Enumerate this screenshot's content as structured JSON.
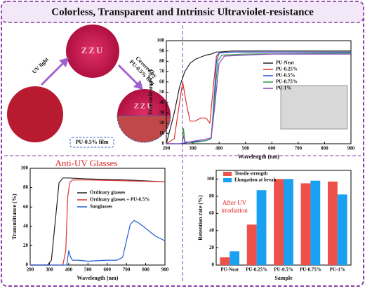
{
  "figure": {
    "title": "Colorless, Transparent and Intrinsic Ultraviolet-resistance",
    "photo_text": "ZZU",
    "arrow_left": "UV light",
    "arrow_right": [
      "Covered by",
      "PU-0.5% film"
    ],
    "film_label": "PU-0.5% film"
  },
  "chart_data": [
    {
      "type": "line",
      "xlabel": "Wavelength (nm)",
      "ylabel": "Transmittance (%)",
      "xlim": [
        200,
        900
      ],
      "xticks": [
        200,
        300,
        400,
        500,
        600,
        700,
        800,
        900
      ],
      "ylim": [
        0,
        100
      ],
      "yticks": [
        0,
        10,
        20,
        30,
        40,
        50,
        60,
        70,
        80,
        90,
        100
      ],
      "series": [
        {
          "name": "PU-Neat",
          "color": "#222222",
          "x": [
            200,
            230,
            250,
            270,
            290,
            310,
            330,
            350,
            370,
            380,
            390,
            400,
            450,
            500,
            600,
            700,
            800,
            900
          ],
          "values": [
            0,
            30,
            55,
            70,
            78,
            82,
            84,
            86,
            87,
            88,
            89,
            89,
            90,
            90,
            90,
            90,
            90,
            90
          ]
        },
        {
          "name": "PU-0.25%",
          "color": "#e03030",
          "x": [
            200,
            230,
            250,
            262,
            275,
            290,
            310,
            330,
            350,
            365,
            380,
            390,
            400,
            450,
            600,
            900
          ],
          "values": [
            0,
            5,
            40,
            60,
            40,
            22,
            22,
            25,
            25,
            20,
            60,
            85,
            88,
            89,
            89,
            89
          ]
        },
        {
          "name": "PU-0.5%",
          "color": "#2050e0",
          "x": [
            200,
            250,
            300,
            350,
            370,
            380,
            390,
            400,
            450,
            600,
            900
          ],
          "values": [
            0,
            0,
            2,
            3,
            5,
            40,
            80,
            88,
            89,
            89,
            89
          ]
        },
        {
          "name": "PU-0.75%",
          "color": "#2a9a40",
          "x": [
            200,
            260,
            265,
            270,
            300,
            350,
            370,
            385,
            395,
            410,
            500,
            900
          ],
          "values": [
            0,
            0,
            15,
            2,
            1,
            3,
            5,
            50,
            80,
            86,
            87,
            88
          ]
        },
        {
          "name": "PU-1%",
          "color": "#9040c0",
          "x": [
            200,
            260,
            265,
            270,
            360,
            370,
            385,
            400,
            420,
            600,
            900
          ],
          "values": [
            0,
            0,
            8,
            1,
            5,
            6,
            40,
            78,
            85,
            87,
            87
          ]
        }
      ]
    },
    {
      "type": "line",
      "title": "Anti-UV Glasses",
      "xlabel": "Wavelength (nm)",
      "ylabel": "Transmittance (%)",
      "xlim": [
        200,
        900
      ],
      "xticks": [
        200,
        300,
        400,
        500,
        600,
        700,
        800,
        900
      ],
      "ylim": [
        0,
        100
      ],
      "yticks": [
        0,
        20,
        40,
        60,
        80,
        100
      ],
      "series": [
        {
          "name": "Ordinary glasses",
          "color": "#222222",
          "x": [
            200,
            290,
            310,
            330,
            350,
            370,
            400,
            500,
            700,
            900
          ],
          "values": [
            0,
            0,
            5,
            45,
            85,
            90,
            90,
            89,
            88,
            86
          ]
        },
        {
          "name": "Ordinary glasses + PU-0.5%",
          "color": "#e03030",
          "x": [
            200,
            370,
            385,
            395,
            405,
            420,
            500,
            700,
            900
          ],
          "values": [
            0,
            0,
            15,
            70,
            85,
            88,
            88,
            87,
            86
          ]
        },
        {
          "name": "Sunglasses",
          "color": "#2060d0",
          "x": [
            200,
            390,
            400,
            410,
            420,
            450,
            500,
            600,
            650,
            680,
            700,
            720,
            740,
            760,
            800,
            850,
            900
          ],
          "values": [
            0,
            0,
            15,
            8,
            5,
            5,
            4,
            5,
            5,
            8,
            25,
            42,
            46,
            44,
            38,
            30,
            25
          ]
        }
      ]
    },
    {
      "type": "bar",
      "xlabel": "Sample",
      "ylabel": "Retention rate (%)",
      "annotation": [
        "After UV",
        "irradiation"
      ],
      "ylim": [
        0,
        110
      ],
      "yticks": [
        0,
        20,
        40,
        60,
        80,
        100
      ],
      "categories": [
        "PU-Neat",
        "PU-0.25%",
        "PU-0.5%",
        "PU-0.75%",
        "PU-1%"
      ],
      "series": [
        {
          "name": "Tensile strength",
          "color": "#f0504a",
          "values": [
            9,
            47,
            100,
            95,
            97
          ]
        },
        {
          "name": "Elongation at break",
          "color": "#1aa0f0",
          "values": [
            16,
            87,
            100,
            98,
            82
          ]
        }
      ]
    }
  ]
}
